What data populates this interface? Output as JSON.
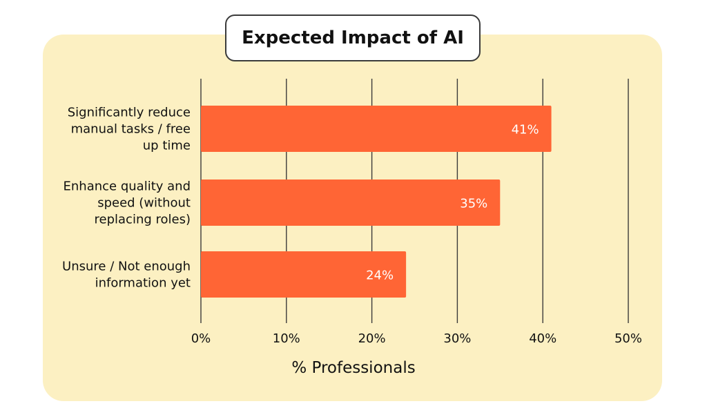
{
  "chart_data": {
    "type": "bar",
    "orientation": "horizontal",
    "title": "Expected Impact of AI",
    "xlabel": "% Professionals",
    "ylabel": "",
    "categories": [
      [
        "Significantly reduce",
        "manual tasks / free",
        "up time"
      ],
      [
        "Enhance quality and",
        "speed (without",
        "replacing roles)"
      ],
      [
        "Unsure / Not enough",
        "information yet"
      ]
    ],
    "values": [
      41,
      35,
      24
    ],
    "value_labels": [
      "41%",
      "35%",
      "24%"
    ],
    "xlim": [
      0,
      50
    ],
    "xticks": [
      0,
      10,
      20,
      30,
      40,
      50
    ],
    "xtick_labels": [
      "0%",
      "10%",
      "20%",
      "30%",
      "40%",
      "50%"
    ],
    "grid": "vertical",
    "colors": {
      "bar": "#ff6535",
      "panel": "#fcf0c2",
      "gridline": "#3a3a3a"
    }
  }
}
